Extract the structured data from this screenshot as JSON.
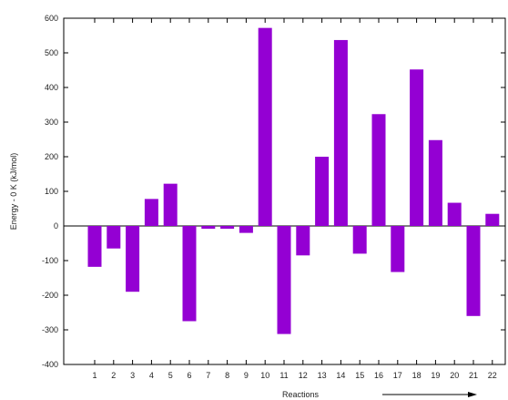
{
  "chart_data": {
    "type": "bar",
    "categories": [
      "1",
      "2",
      "3",
      "4",
      "5",
      "6",
      "7",
      "8",
      "9",
      "10",
      "11",
      "12",
      "13",
      "14",
      "15",
      "16",
      "17",
      "18",
      "19",
      "20",
      "21",
      "22"
    ],
    "values": [
      -118,
      -65,
      -190,
      78,
      122,
      -275,
      -8,
      -8,
      -20,
      572,
      -312,
      -85,
      200,
      537,
      -80,
      323,
      -133,
      452,
      248,
      67,
      -260,
      35
    ],
    "title": "",
    "xlabel": "Reactions",
    "ylabel": "Energy - 0 K (kJ/mol)",
    "ylim": [
      -400,
      600
    ],
    "yticks": [
      -400,
      -300,
      -200,
      -100,
      0,
      100,
      200,
      300,
      400,
      500,
      600
    ],
    "grid": false,
    "legend": "none",
    "bar_color": "#9400d3",
    "annotation": "right-arrow"
  }
}
